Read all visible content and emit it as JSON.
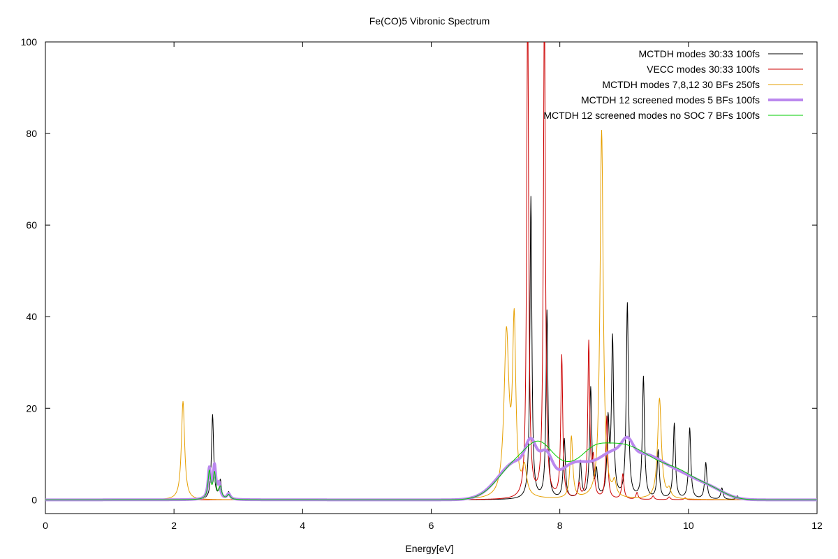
{
  "chart_data": {
    "type": "line",
    "title": "Fe(CO)5 Vibronic Spectrum",
    "xlabel": "Energy[eV]",
    "ylabel": "",
    "xlim": [
      0,
      12
    ],
    "ylim": [
      -3,
      100
    ],
    "xticks": [
      0,
      2,
      4,
      6,
      8,
      10,
      12
    ],
    "yticks": [
      0,
      20,
      40,
      60,
      80,
      100
    ],
    "grid": false,
    "legend_position": "top-right",
    "series": [
      {
        "name": "MCTDH modes 30:33 100fs",
        "color": "#000000",
        "width": 1,
        "peaks": [
          [
            2.6,
            18.5,
            0.02
          ],
          [
            2.72,
            4,
            0.02
          ],
          [
            2.85,
            1.6,
            0.02
          ],
          [
            7.55,
            66,
            0.018
          ],
          [
            7.8,
            41,
            0.018
          ],
          [
            8.07,
            13,
            0.02
          ],
          [
            8.32,
            8,
            0.02
          ],
          [
            8.48,
            24,
            0.02
          ],
          [
            8.57,
            5.5,
            0.02
          ],
          [
            8.75,
            16,
            0.02
          ],
          [
            8.82,
            34.5,
            0.02
          ],
          [
            9.05,
            42.5,
            0.02
          ],
          [
            9.3,
            26.5,
            0.02
          ],
          [
            9.53,
            10.5,
            0.02
          ],
          [
            9.78,
            16.5,
            0.02
          ],
          [
            10.02,
            15.5,
            0.02
          ],
          [
            10.27,
            8,
            0.02
          ],
          [
            10.52,
            2.5,
            0.02
          ],
          [
            10.76,
            0.8,
            0.02
          ]
        ],
        "broad": []
      },
      {
        "name": "VECC modes 30:33 100fs",
        "color": "#cc0000",
        "width": 1,
        "peaks": [
          [
            7.5,
            110,
            0.018
          ],
          [
            7.76,
            110,
            0.018
          ],
          [
            8.03,
            31,
            0.018
          ],
          [
            8.3,
            3,
            0.02
          ],
          [
            8.45,
            34,
            0.018
          ],
          [
            8.52,
            8,
            0.02
          ],
          [
            8.73,
            18,
            0.018
          ],
          [
            8.98,
            5.5,
            0.02
          ],
          [
            9.2,
            1.5,
            0.02
          ],
          [
            9.45,
            0.8,
            0.02
          ],
          [
            9.7,
            0.6,
            0.02
          ],
          [
            9.95,
            0.4,
            0.02
          ]
        ],
        "broad": []
      },
      {
        "name": "MCTDH modes 7,8,12 30 BFs 250fs",
        "color": "#e69f00",
        "width": 1,
        "peaks": [
          [
            2.14,
            21.5,
            0.03
          ],
          [
            7.17,
            35.5,
            0.045
          ],
          [
            7.29,
            37,
            0.03
          ],
          [
            7.45,
            6,
            0.04
          ],
          [
            8.18,
            13.5,
            0.025
          ],
          [
            8.65,
            80.5,
            0.03
          ],
          [
            8.85,
            3,
            0.03
          ],
          [
            9.55,
            22,
            0.035
          ],
          [
            9.7,
            1.8,
            0.03
          ]
        ],
        "broad": []
      },
      {
        "name": "MCTDH 12 screened modes 5 BFs 100fs",
        "color": "#bb88ee",
        "width": 4,
        "peaks": [
          [
            2.55,
            6.5,
            0.025
          ],
          [
            2.63,
            7,
            0.025
          ],
          [
            2.7,
            3,
            0.025
          ],
          [
            2.85,
            1.2,
            0.03
          ]
        ],
        "broad": [
          [
            7.35,
            8.5,
            0.3
          ],
          [
            7.55,
            6,
            0.08
          ],
          [
            7.78,
            6,
            0.1
          ],
          [
            8.2,
            7,
            0.25
          ],
          [
            8.85,
            10,
            0.3
          ],
          [
            9.05,
            3,
            0.08
          ],
          [
            9.4,
            7,
            0.25
          ],
          [
            9.85,
            4.5,
            0.25
          ],
          [
            10.3,
            2.5,
            0.25
          ]
        ]
      },
      {
        "name": "MCTDH 12 screened modes no SOC 7 BFs 100fs",
        "color": "#00cc00",
        "width": 1,
        "peaks": [
          [
            2.55,
            6,
            0.025
          ],
          [
            2.63,
            5.5,
            0.025
          ],
          [
            2.72,
            2.5,
            0.025
          ],
          [
            2.85,
            1,
            0.03
          ]
        ],
        "broad": [
          [
            7.35,
            8,
            0.3
          ],
          [
            7.7,
            7,
            0.2
          ],
          [
            8.1,
            6,
            0.25
          ],
          [
            8.5,
            5,
            0.2
          ],
          [
            8.85,
            9.5,
            0.3
          ],
          [
            9.35,
            7,
            0.3
          ],
          [
            9.85,
            4.5,
            0.25
          ],
          [
            10.3,
            2.5,
            0.25
          ]
        ]
      }
    ]
  }
}
